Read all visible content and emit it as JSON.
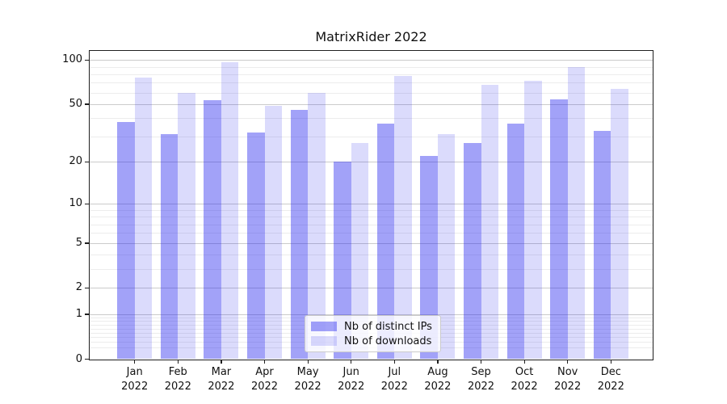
{
  "chart_data": {
    "type": "bar",
    "title": "MatrixRider 2022",
    "categories": [
      "Jan",
      "Feb",
      "Mar",
      "Apr",
      "May",
      "Jun",
      "Jul",
      "Aug",
      "Sep",
      "Oct",
      "Nov",
      "Dec"
    ],
    "x_tick_year": "2022",
    "series": [
      {
        "key": "distinct-ips",
        "name": "Nb of distinct IPs",
        "color": "rgba(34,34,238,0.42)",
        "values": [
          38,
          31,
          53,
          32,
          46,
          20,
          37,
          22,
          27,
          37,
          54,
          33
        ]
      },
      {
        "key": "downloads",
        "name": "Nb of downloads",
        "color": "rgba(34,34,238,0.16)",
        "values": [
          76,
          60,
          96,
          49,
          60,
          27,
          78,
          31,
          68,
          72,
          89,
          64
        ]
      }
    ],
    "yscale": "log1p",
    "ylim": [
      0,
      116.5
    ],
    "y_major_ticks": [
      0,
      1,
      2,
      5,
      10,
      20,
      50,
      100
    ],
    "y_minor_ticks": [
      0.2,
      0.3,
      0.4,
      0.5,
      0.6,
      0.7,
      0.8,
      0.9,
      3,
      4,
      6,
      7,
      8,
      9,
      30,
      40,
      60,
      70,
      80,
      90
    ],
    "grid": {
      "which": "both",
      "major_color": "#cbcbcb",
      "minor_color": "#ececec"
    },
    "legend_position": "lower center"
  },
  "colors": {
    "background": "#ffffff",
    "spine": "#1f1f1f",
    "text": "#111111",
    "legend_border": "#cbcbcb",
    "legend_background": "rgba(255,255,255,0.8)"
  }
}
